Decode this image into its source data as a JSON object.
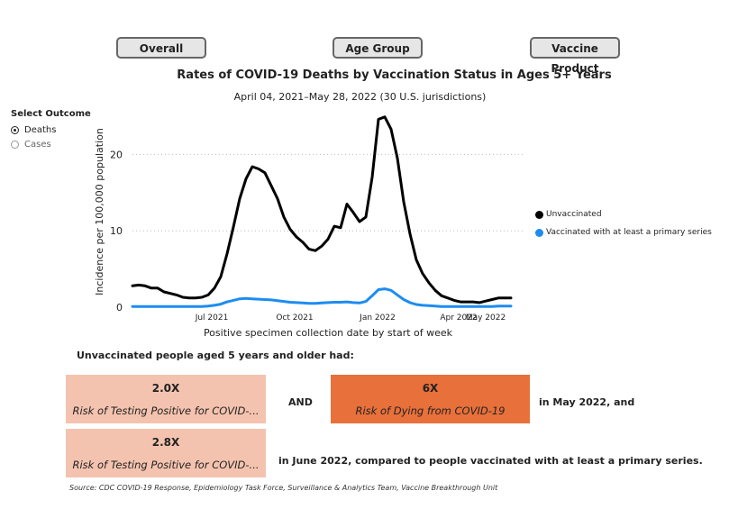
{
  "tabs": {
    "overall": "Overall",
    "age_group": "Age Group",
    "vaccine_product": "Vaccine Product"
  },
  "outcome_selector": {
    "label": "Select Outcome",
    "options": [
      "Deaths",
      "Cases"
    ],
    "selected": "Deaths"
  },
  "summary": {
    "lead": "Unvaccinated people aged 5 years and older had:",
    "boxes": [
      {
        "value": "2.0X",
        "description": "Risk of Testing Positive for COVID-..."
      },
      {
        "value": "6X",
        "description": "Risk of Dying from COVID-19"
      },
      {
        "value": "2.8X",
        "description": "Risk of Testing Positive for COVID-..."
      }
    ],
    "and_text": "AND",
    "may_text": "in May 2022, and",
    "june_text": "in June 2022, compared to people vaccinated with at least a primary series."
  },
  "source": "Source: CDC COVID-19 Response, Epidemiology Task Force, Surveillance & Analytics Team, Vaccine Breakthrough Unit",
  "colors": {
    "unvaccinated": "#000000",
    "vaccinated": "#1e8cf0",
    "light_box": "#f4c3af",
    "dark_box": "#e8703a"
  },
  "chart_data": {
    "type": "line",
    "title": "Rates of COVID-19 Deaths by Vaccination Status in Ages 5+ Years",
    "subtitle": "April 04, 2021–May 28, 2022 (30 U.S. jurisdictions)",
    "xlabel": "Positive specimen collection date by start of week",
    "ylabel": "Incidence per 100,000 population",
    "x_ticks": [
      "Jul 2021",
      "Oct 2021",
      "Jan 2022",
      "Apr 2022",
      "May 2022"
    ],
    "y_ticks": [
      0,
      10,
      20
    ],
    "ylim": [
      0,
      25
    ],
    "grid": true,
    "legend_position": "right",
    "x": [
      "2021-04-04",
      "2021-04-11",
      "2021-04-18",
      "2021-04-25",
      "2021-05-02",
      "2021-05-09",
      "2021-05-16",
      "2021-05-23",
      "2021-05-30",
      "2021-06-06",
      "2021-06-13",
      "2021-06-20",
      "2021-06-27",
      "2021-07-04",
      "2021-07-11",
      "2021-07-18",
      "2021-07-25",
      "2021-08-01",
      "2021-08-08",
      "2021-08-15",
      "2021-08-22",
      "2021-08-29",
      "2021-09-05",
      "2021-09-12",
      "2021-09-19",
      "2021-09-26",
      "2021-10-03",
      "2021-10-10",
      "2021-10-17",
      "2021-10-24",
      "2021-10-31",
      "2021-11-07",
      "2021-11-14",
      "2021-11-21",
      "2021-11-28",
      "2021-12-05",
      "2021-12-12",
      "2021-12-19",
      "2021-12-26",
      "2022-01-02",
      "2022-01-09",
      "2022-01-16",
      "2022-01-23",
      "2022-01-30",
      "2022-02-06",
      "2022-02-13",
      "2022-02-20",
      "2022-02-27",
      "2022-03-06",
      "2022-03-13",
      "2022-03-20",
      "2022-03-27",
      "2022-04-03",
      "2022-04-10",
      "2022-04-17",
      "2022-04-24",
      "2022-05-01",
      "2022-05-08",
      "2022-05-15",
      "2022-05-22",
      "2022-05-29"
    ],
    "series": [
      {
        "name": "Unvaccinated",
        "values": [
          2.8,
          2.9,
          2.8,
          2.5,
          2.5,
          2.0,
          1.8,
          1.6,
          1.3,
          1.2,
          1.2,
          1.3,
          1.6,
          2.5,
          4.0,
          7.0,
          10.5,
          14.2,
          16.8,
          18.4,
          18.1,
          17.6,
          15.9,
          14.2,
          11.8,
          10.2,
          9.2,
          8.5,
          7.6,
          7.4,
          8.0,
          8.9,
          10.6,
          10.4,
          13.5,
          12.4,
          11.2,
          11.8,
          17.0,
          24.6,
          24.9,
          23.3,
          19.5,
          13.8,
          9.6,
          6.2,
          4.4,
          3.2,
          2.2,
          1.5,
          1.2,
          0.9,
          0.7,
          0.7,
          0.7,
          0.6,
          0.8,
          1.0,
          1.2,
          1.2,
          1.2
        ]
      },
      {
        "name": "Vaccinated with at least a primary series",
        "values": [
          0.1,
          0.1,
          0.1,
          0.1,
          0.1,
          0.1,
          0.1,
          0.1,
          0.1,
          0.1,
          0.1,
          0.1,
          0.15,
          0.25,
          0.4,
          0.7,
          0.9,
          1.1,
          1.15,
          1.1,
          1.05,
          1.0,
          0.95,
          0.85,
          0.75,
          0.65,
          0.6,
          0.55,
          0.5,
          0.5,
          0.55,
          0.6,
          0.65,
          0.65,
          0.7,
          0.6,
          0.55,
          0.75,
          1.5,
          2.3,
          2.4,
          2.2,
          1.6,
          1.0,
          0.6,
          0.35,
          0.25,
          0.2,
          0.15,
          0.1,
          0.1,
          0.1,
          0.1,
          0.1,
          0.1,
          0.1,
          0.1,
          0.1,
          0.15,
          0.15,
          0.15
        ]
      }
    ]
  }
}
